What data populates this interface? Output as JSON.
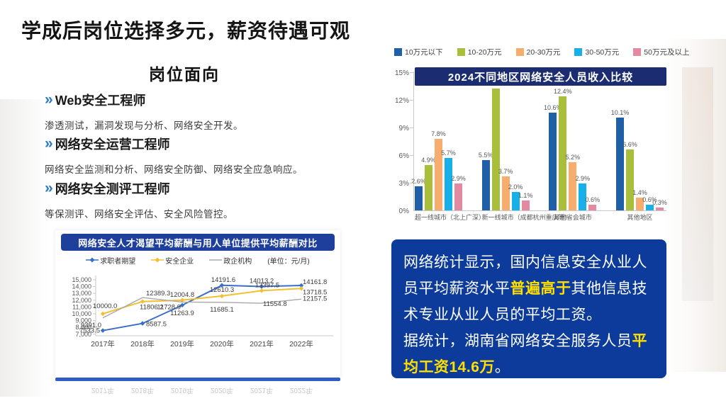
{
  "slide": {
    "title": "学成后岗位选择多元，薪资待遇可观"
  },
  "positions": {
    "heading": "岗位面向",
    "chevron": "»",
    "items": [
      {
        "title": "Web安全工程师",
        "desc": "渗透测试，漏洞发现与分析、网络安全开发。"
      },
      {
        "title": "网络安全运营工程师",
        "desc": "网络安全监测和分析、网络安全防御、网络安全应急响应。"
      },
      {
        "title": "网络安全测评工程师",
        "desc": "等保测评、网络安全评估、安全风险管控。"
      }
    ]
  },
  "chart_data": [
    {
      "type": "bar",
      "title": "2024不同地区网络安全人员收入比较",
      "categories": [
        "超一线城市（北上广深）",
        "新一线城市（成都杭州重庆等）",
        "其他省会城市",
        "其他地区"
      ],
      "series": [
        {
          "name": "10万元以下",
          "color": "#1f5fa7",
          "values": [
            2.6,
            5.5,
            10.6,
            10.1
          ]
        },
        {
          "name": "10-20万元",
          "color": "#a9bf3c",
          "values": [
            4.9,
            13.2,
            12.4,
            6.6
          ]
        },
        {
          "name": "20-30万元",
          "color": "#f6ad6e",
          "values": [
            7.8,
            3.7,
            5.2,
            1.4
          ]
        },
        {
          "name": "30-50万元",
          "color": "#18b0e8",
          "values": [
            5.7,
            2.0,
            2.9,
            0.6
          ]
        },
        {
          "name": "50万元及以上",
          "color": "#e389a2",
          "values": [
            2.9,
            1.1,
            0.6,
            0.3
          ]
        }
      ],
      "ylim": [
        0,
        15
      ],
      "yticks": [
        "0%",
        "3%",
        "6%",
        "9%",
        "12%",
        "15%"
      ],
      "grid": false,
      "legend_position": "top"
    },
    {
      "type": "line",
      "title": "网络安全人才渴望平均薪酬与用人单位提供平均薪酬对比",
      "unit_label": "(单位：元/月)",
      "x": [
        "2017年",
        "2018年",
        "2019年",
        "2020年",
        "2021年",
        "2022年"
      ],
      "series": [
        {
          "name": "求职者期望",
          "color": "#3a6fc8",
          "values": [
            7533.5,
            8587.5,
            11263.9,
            14191.6,
            14013.2,
            14161.8
          ]
        },
        {
          "name": "安全企业",
          "color": "#f3c033",
          "values": [
            10000.0,
            11806.2,
            12004.8,
            12610.3,
            13397.5,
            13718.5
          ]
        },
        {
          "name": "政企机构",
          "color": "#a8a8a8",
          "values": [
            9391.0,
            12389.3,
            11728.9,
            11685.1,
            11554.8,
            12157.5
          ]
        }
      ],
      "ylim": [
        7000,
        15000
      ],
      "yticks": [
        "7,000",
        "8,000",
        "9,000",
        "10,000",
        "11,000",
        "12,000",
        "13,000",
        "14,000",
        "15,000"
      ],
      "grid": false,
      "legend_position": "top"
    }
  ],
  "info_box": {
    "paragraphs": [
      [
        {
          "text": "网络统计显示，国内信息安全从业人员平均薪资水平",
          "highlight": false
        },
        {
          "text": "普遍高于",
          "highlight": true
        },
        {
          "text": "其他信息技术专业从业人员的平均工资。",
          "highlight": false
        }
      ],
      [
        {
          "text": "据统计，湖南省网络安全服务人员",
          "highlight": false
        },
        {
          "text": "平均工资14.6万",
          "highlight": true
        },
        {
          "text": "。",
          "highlight": false
        }
      ]
    ]
  },
  "colors": {
    "accent_navy": "#1b2c70",
    "accent_royal": "#1e3f9b",
    "info_box_bg": "#0c3b9c",
    "highlight_yellow": "#ffdf00",
    "chevron_blue": "#2b7ac9"
  }
}
